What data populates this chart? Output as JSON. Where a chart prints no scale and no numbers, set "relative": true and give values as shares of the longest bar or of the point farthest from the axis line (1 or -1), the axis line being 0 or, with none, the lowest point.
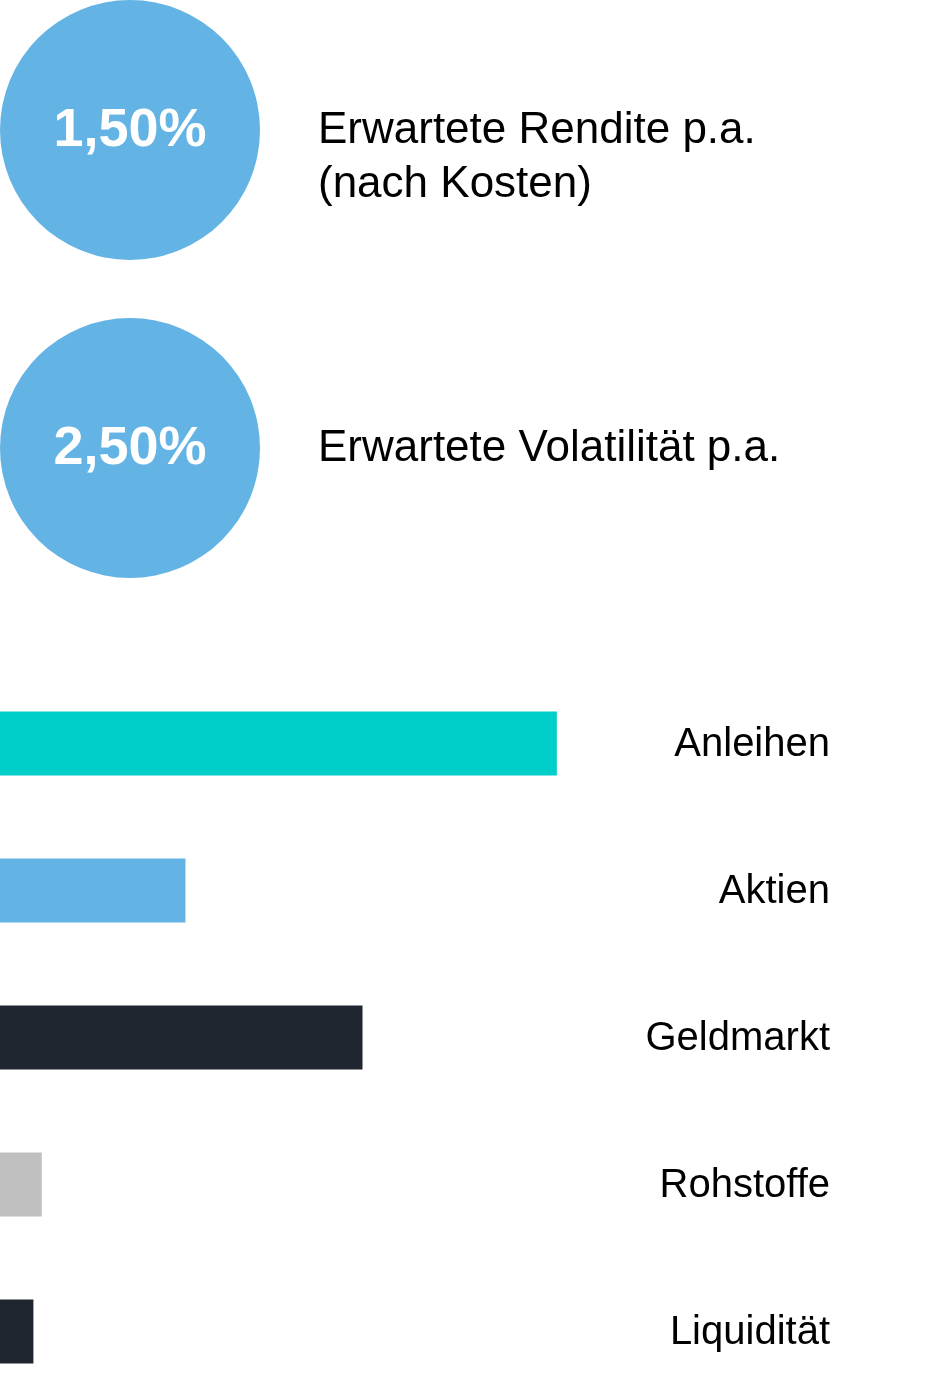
{
  "chart_data": [
    {
      "type": "other",
      "annotations": [
        "1,50%",
        "Erwartete Rendite p.a.\n(nach Kosten)",
        "2,50%",
        "Erwartete Volatilität p.a."
      ],
      "color": "#63b3e4"
    },
    {
      "type": "bar",
      "orientation": "horizontal",
      "relative": true,
      "categories": [
        "Anleihen",
        "Aktien",
        "Geldmarkt",
        "Rohstoffe",
        "Liquidität"
      ],
      "values": [
        1,
        0.333,
        0.651,
        0.075,
        0.06
      ],
      "colors": [
        "#00cec9",
        "#63b3e4",
        "#1f2630",
        "#c0c0c0",
        "#1f2630"
      ]
    }
  ]
}
